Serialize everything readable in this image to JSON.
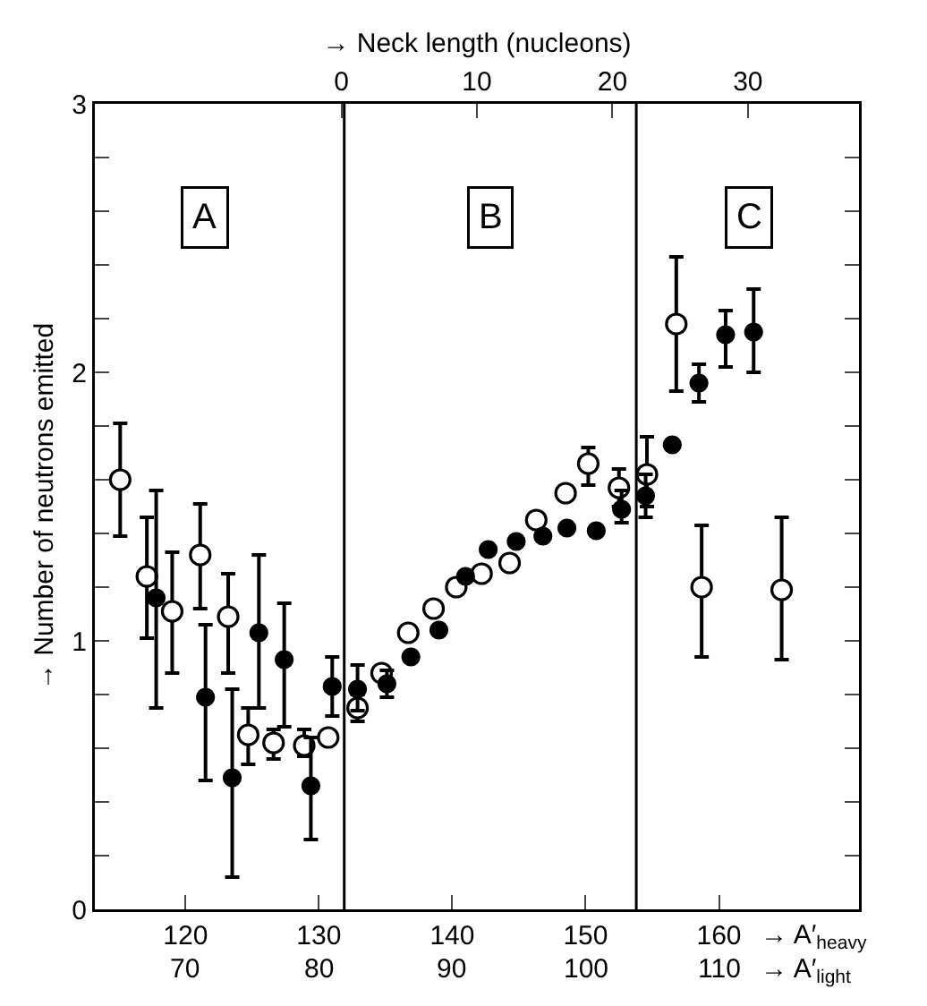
{
  "chart_data": {
    "type": "scatter",
    "xlabel": "→ A′$_{heavy}$",
    "x2label": "→ Neck length (nucleons)",
    "ylabel": "→ Number of neutrons emitted",
    "xlim": [
      113.2,
      170.5
    ],
    "xticks": [
      120,
      130,
      140,
      150,
      160
    ],
    "x2lim": [
      -18.2,
      38.2
    ],
    "x2ticks": [
      0,
      10,
      20,
      30
    ],
    "ylim": [
      0,
      3
    ],
    "yticks": [
      0,
      {
        "value": 0.2,
        "label": null
      },
      {
        "value": 0.4,
        "label": null
      },
      {
        "value": 0.6,
        "label": null
      },
      {
        "value": 0.8,
        "label": null
      },
      1,
      {
        "value": 1.2,
        "label": null
      },
      {
        "value": 1.4,
        "label": null
      },
      {
        "value": 1.6,
        "label": null
      },
      {
        "value": 1.8,
        "label": null
      },
      2,
      {
        "value": 2.2,
        "label": null
      },
      {
        "value": 2.4,
        "label": null
      },
      {
        "value": 2.6,
        "label": null
      },
      {
        "value": 2.8,
        "label": null
      },
      3
    ],
    "grid": false,
    "marker": "circle",
    "ref_lines": [
      {
        "axis": "x",
        "value": 131.9,
        "color": "#000000"
      },
      {
        "axis": "x",
        "value": 153.8,
        "color": "#000000"
      }
    ],
    "annotations": [
      {
        "text": "A",
        "x": 121.5,
        "y": 2.58
      },
      {
        "text": "B",
        "x": 142.9,
        "y": 2.58
      },
      {
        "text": "C",
        "x": 162.3,
        "y": 2.58
      },
      "70",
      "80",
      "90",
      "100",
      "110",
      "→ A′$_{light}$"
    ],
    "series": [
      {
        "color": "#ffffff",
        "x": [
          115.1,
          117.1,
          119.0,
          121.1,
          123.2,
          124.7,
          126.6,
          128.9,
          130.7,
          132.9,
          134.7,
          136.7,
          138.6,
          140.3,
          142.2,
          144.3,
          146.3,
          148.5,
          150.2,
          152.5,
          154.6,
          156.8,
          158.7,
          164.7
        ],
        "values": [
          1.6,
          1.24,
          1.11,
          1.32,
          1.09,
          0.65,
          0.62,
          0.61,
          0.64,
          0.75,
          0.88,
          1.03,
          1.12,
          1.2,
          1.25,
          1.29,
          1.45,
          1.55,
          1.66,
          1.57,
          1.62,
          2.18,
          1.2,
          1.19
        ],
        "errors": [
          [
            1.39,
            1.81
          ],
          [
            1.01,
            1.46
          ],
          [
            0.88,
            1.33
          ],
          [
            1.12,
            1.51
          ],
          [
            0.88,
            1.25
          ],
          [
            0.54,
            0.75
          ],
          [
            0.56,
            0.67
          ],
          [
            0.57,
            0.67
          ],
          null,
          [
            0.7,
            0.8
          ],
          null,
          null,
          null,
          null,
          null,
          null,
          null,
          null,
          [
            1.58,
            1.72
          ],
          [
            1.5,
            1.64
          ],
          [
            1.5,
            1.76
          ],
          [
            1.93,
            2.43
          ],
          [
            0.94,
            1.43
          ],
          [
            0.93,
            1.46
          ]
        ]
      },
      {
        "color": "#000000",
        "x": [
          117.8,
          121.5,
          123.5,
          125.5,
          127.4,
          129.4,
          131.0,
          132.9,
          135.1,
          136.9,
          139.0,
          141.0,
          142.7,
          144.8,
          146.8,
          148.6,
          150.8,
          152.7,
          154.5,
          156.5,
          158.5,
          160.5,
          162.6
        ],
        "values": [
          1.16,
          0.79,
          0.49,
          1.03,
          0.93,
          0.46,
          0.83,
          0.82,
          0.84,
          0.94,
          1.04,
          1.24,
          1.34,
          1.37,
          1.39,
          1.42,
          1.41,
          1.49,
          1.54,
          1.73,
          1.96,
          2.14,
          2.15
        ],
        "errors": [
          [
            0.75,
            1.56
          ],
          [
            0.48,
            1.06
          ],
          [
            0.12,
            0.82
          ],
          [
            0.75,
            1.32
          ],
          [
            0.68,
            1.14
          ],
          [
            0.26,
            0.64
          ],
          [
            0.72,
            0.94
          ],
          [
            0.74,
            0.91
          ],
          [
            0.79,
            0.89
          ],
          null,
          null,
          null,
          null,
          null,
          null,
          null,
          null,
          [
            1.44,
            1.56
          ],
          [
            1.46,
            1.62
          ],
          null,
          [
            1.89,
            2.03
          ],
          [
            2.02,
            2.23
          ],
          [
            2.0,
            2.31
          ]
        ]
      }
    ]
  }
}
